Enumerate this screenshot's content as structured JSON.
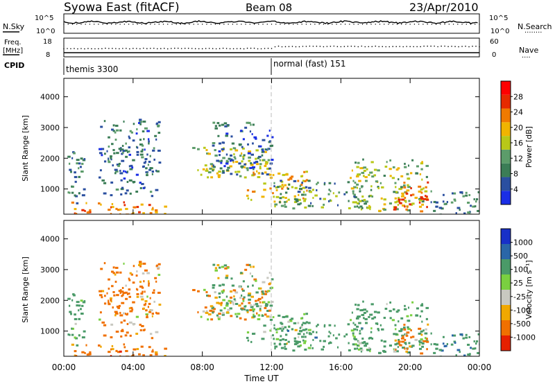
{
  "header": {
    "station": "Syowa East (fitACF)",
    "beam": "Beam 08",
    "date": "23/Apr/2010"
  },
  "panel_labels": {
    "nsky": "N.Sky",
    "nsearch": "N.Search",
    "freq": "Freq.",
    "freq_unit": "[MHz]",
    "nave": "Nave",
    "cpid": "CPID",
    "dots": "········",
    "dots_short": "····"
  },
  "noise_axis": {
    "left_top": "10^5",
    "left_bottom": "10^0",
    "right_top": "10^5",
    "right_bottom": "10^0"
  },
  "freq_axis": {
    "left_top": "18",
    "left_bottom": "8",
    "right_top": "60",
    "right_bottom": "0"
  },
  "cpid_segments": [
    {
      "label": "themis 3300",
      "start_hour": 0
    },
    {
      "label": "normal (fast) 151",
      "start_hour": 12
    }
  ],
  "colors": {
    "power_scale": [
      "#1a2ee6",
      "#2a4fa0",
      "#3b7d56",
      "#5c9c6a",
      "#b8c818",
      "#f0b400",
      "#f07a00",
      "#e62a00",
      "#ff0000"
    ],
    "velocity_scale": [
      "#e62000",
      "#f07000",
      "#f0a800",
      "#c8c8c0",
      "#7ad040",
      "#4a9a68",
      "#2a66a8",
      "#1830c8"
    ]
  },
  "chart_data": {
    "type": "heatmap",
    "x_axis": {
      "label": "Time UT",
      "range_hours": [
        0,
        24
      ],
      "ticks": [
        "00:00",
        "04:00",
        "08:00",
        "12:00",
        "16:00",
        "20:00",
        "00:00"
      ]
    },
    "panels": [
      {
        "name": "power",
        "ylabel": "Slant Range [km]",
        "ylim": [
          180,
          4600
        ],
        "yticks": [
          "1000",
          "2000",
          "3000",
          "4000"
        ],
        "colorbar_label": "Power [dB]",
        "colorbar_ticks": [
          "4",
          "8",
          "12",
          "16",
          "20",
          "24",
          "28"
        ],
        "colorbar_range": [
          0,
          32
        ]
      },
      {
        "name": "velocity",
        "ylabel": "Slant Range [km]",
        "ylim": [
          180,
          4600
        ],
        "yticks": [
          "1000",
          "2000",
          "3000",
          "4000"
        ],
        "colorbar_label": "Velocity [m s⁻¹]",
        "colorbar_ticks": [
          "-1000",
          "-500",
          "-100",
          "-25",
          "25",
          "100",
          "500",
          "1000"
        ],
        "colorbar_range": [
          -1200,
          1200
        ]
      }
    ],
    "echo_regions": [
      {
        "hours": [
          0,
          5.8
        ],
        "range_km": [
          180,
          600
        ],
        "power_db": 26,
        "velocity": -300
      },
      {
        "hours": [
          0.2,
          1.2
        ],
        "range_km": [
          500,
          2300
        ],
        "power_db": 10,
        "velocity": 200
      },
      {
        "hours": [
          2.0,
          5.5
        ],
        "range_km": [
          800,
          3300
        ],
        "power_db": 8,
        "velocity": -200
      },
      {
        "hours": [
          7.4,
          11.8
        ],
        "range_km": [
          1400,
          2400
        ],
        "power_db": 18,
        "velocity": 0
      },
      {
        "hours": [
          8.5,
          12.0
        ],
        "range_km": [
          1500,
          3200
        ],
        "power_db": 8,
        "velocity": 30
      },
      {
        "hours": [
          10.5,
          14.0
        ],
        "range_km": [
          600,
          1600
        ],
        "power_db": 22,
        "velocity": 200
      },
      {
        "hours": [
          12.0,
          17.5
        ],
        "range_km": [
          400,
          1300
        ],
        "power_db": 12,
        "velocity": 300
      },
      {
        "hours": [
          16.5,
          21.0
        ],
        "range_km": [
          300,
          2000
        ],
        "power_db": 16,
        "velocity": 250
      },
      {
        "hours": [
          19.0,
          21.0
        ],
        "range_km": [
          300,
          1300
        ],
        "power_db": 28,
        "velocity": -200
      },
      {
        "hours": [
          21.0,
          24.0
        ],
        "range_km": [
          180,
          1000
        ],
        "power_db": 10,
        "velocity": 400
      }
    ]
  }
}
